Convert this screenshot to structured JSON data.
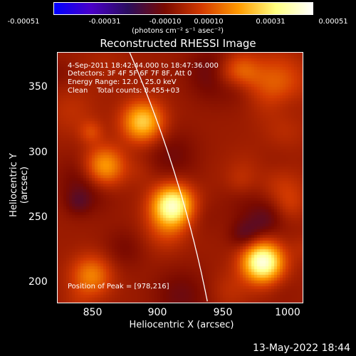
{
  "colorbar": {
    "tick_labels": [
      "-0.00051",
      "-0.00031",
      "-0.00010",
      "0.00010",
      "0.00031",
      "0.00051"
    ],
    "units": "(photons cm⁻² s⁻¹ asec⁻²)"
  },
  "title": "Reconstructed RHESSI Image",
  "info": {
    "time_range": "4-Sep-2011 18:42:44.000 to 18:47:36.000",
    "detectors": "Detectors: 3F 4F 5F 6F 7F 8F, Att 0",
    "energy_range": "Energy Range: 12.0 - 25.0 keV",
    "clean": "Clean    Total counts: 8.455+03"
  },
  "peak": "Position of Peak = [978,216]",
  "axes": {
    "xlabel": "Heliocentric X (arcsec)",
    "ylabel": "Heliocentric Y (arcsec)",
    "x_ticks": [
      "850",
      "900",
      "950",
      "1000"
    ],
    "y_ticks": [
      "350",
      "300",
      "250",
      "200"
    ]
  },
  "timestamp": "13-May-2022 18:44",
  "colors": {
    "background": "#000000",
    "limb_line": "#ffffff",
    "colormap": [
      "#0000ff",
      "#4a00c8",
      "#2a0d5e",
      "#7a0a00",
      "#d43a00",
      "#ff9a00",
      "#ffff80",
      "#ffffff"
    ]
  },
  "chart_data": {
    "type": "heatmap",
    "title": "Reconstructed RHESSI Image",
    "xlabel": "Heliocentric X (arcsec)",
    "ylabel": "Heliocentric Y (arcsec)",
    "xlim": [
      820,
      1010
    ],
    "ylim": [
      183,
      378
    ],
    "zlim": [
      -0.00051,
      0.00051
    ],
    "peaks": [
      {
        "x": 978,
        "y": 216,
        "value": 0.00051
      },
      {
        "x": 908,
        "y": 260,
        "value": 0.00045
      },
      {
        "x": 885,
        "y": 325,
        "value": 0.00032
      },
      {
        "x": 855,
        "y": 290,
        "value": 0.00028
      },
      {
        "x": 960,
        "y": 362,
        "value": 0.00024
      },
      {
        "x": 845,
        "y": 205,
        "value": 0.0002
      }
    ]
  }
}
